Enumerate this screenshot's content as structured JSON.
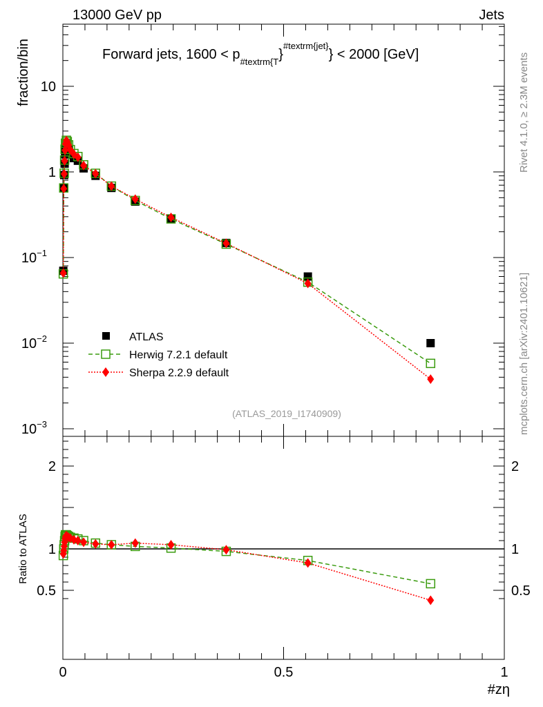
{
  "header": {
    "left": "13000 GeV pp",
    "right": "Jets"
  },
  "side_labels": {
    "rivet": "Rivet 4.1.0, ≥ 2.3M events",
    "mcplots": "mcplots.cern.ch [arXiv:2401.10621]"
  },
  "chart_data": {
    "type": "scatter",
    "title": {
      "main": "Forward jets, 1600 < p",
      "sub": "#textrm{T",
      "close1": "}",
      "sup": "#textrm{jet}",
      "close2": "} < 2000 [GeV]"
    },
    "analysis_id": "(ATLAS_2019_I1740909)",
    "xlabel": "#zη",
    "ylabel": "fraction/bin",
    "ratio_ylabel": "Ratio to ATLAS",
    "xlim": [
      0,
      1
    ],
    "ylim": [
      0.0008,
      50
    ],
    "yscale": "log",
    "ratio_ylim": [
      0.35,
      2.35
    ],
    "x_ticks": [
      "0",
      "0.5",
      "1"
    ],
    "y_ticks": [
      {
        "v": 10,
        "label": "10"
      },
      {
        "v": 1,
        "label": "1"
      },
      {
        "v": 0.1,
        "label": "10",
        "exp": "−1"
      },
      {
        "v": 0.01,
        "label": "10",
        "exp": "−2"
      },
      {
        "v": 0.001,
        "label": "10",
        "exp": "−3"
      }
    ],
    "ratio_ticks": [
      {
        "v": 2,
        "label": "2"
      },
      {
        "v": 1,
        "label": "1"
      },
      {
        "v": 0.5,
        "label": "0.5"
      }
    ],
    "x": [
      0.001,
      0.002,
      0.003,
      0.004,
      0.005,
      0.006,
      0.008,
      0.01,
      0.013,
      0.017,
      0.025,
      0.034,
      0.047,
      0.074,
      0.11,
      0.164,
      0.245,
      0.37,
      0.555,
      0.833
    ],
    "series": [
      {
        "name": "ATLAS",
        "role": "data",
        "color": "#000000",
        "values": [
          0.07,
          0.65,
          0.92,
          1.25,
          1.6,
          1.85,
          2.0,
          1.95,
          1.8,
          1.6,
          1.45,
          1.35,
          1.1,
          0.9,
          0.65,
          0.45,
          0.28,
          0.148,
          0.06,
          0.01
        ]
      },
      {
        "name": "Herwig 7.2.1 default",
        "role": "mc",
        "color": "#3a9b0e",
        "ratio": [
          0.92,
          1.0,
          1.05,
          1.1,
          1.15,
          1.17,
          1.17,
          1.16,
          1.15,
          1.14,
          1.13,
          1.12,
          1.1,
          1.07,
          1.05,
          1.03,
          1.01,
          0.97,
          0.86,
          0.58
        ]
      },
      {
        "name": "Sherpa 2.2.9 default",
        "role": "mc",
        "color": "#ff0000",
        "ratio": [
          0.94,
          0.98,
          1.03,
          1.08,
          1.12,
          1.15,
          1.16,
          1.15,
          1.14,
          1.13,
          1.11,
          1.1,
          1.08,
          1.06,
          1.05,
          1.07,
          1.05,
          0.99,
          0.83,
          0.38
        ]
      }
    ],
    "legend_placement": "lower-left"
  }
}
